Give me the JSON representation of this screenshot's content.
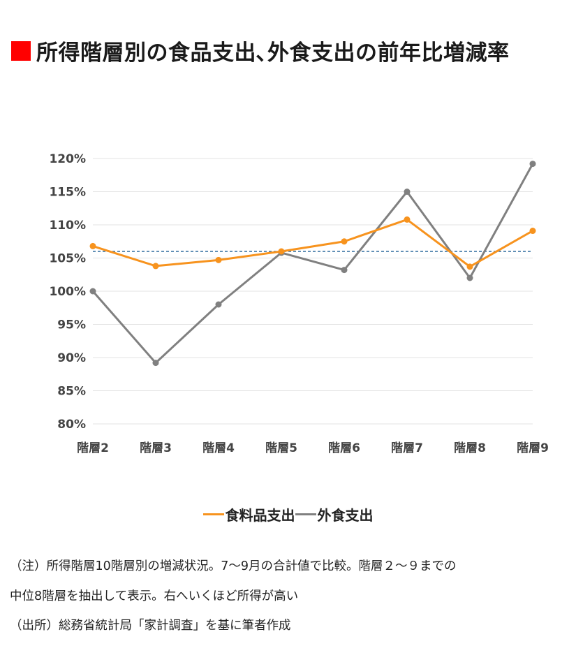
{
  "title": "所得階層別の食品支出､外食支出の前年比増減率",
  "colors": {
    "title_marker": "#ff0000",
    "food": "#f7931e",
    "dining": "#808080",
    "reference": "#2e6b9e",
    "grid": "#e3e3e3"
  },
  "chart_data": {
    "type": "line",
    "categories": [
      "階層2",
      "階層3",
      "階層4",
      "階層5",
      "階層6",
      "階層7",
      "階層8",
      "階層9"
    ],
    "series": [
      {
        "name": "食料品支出",
        "values": [
          106.8,
          103.8,
          104.7,
          106.0,
          107.5,
          110.8,
          103.7,
          109.1
        ]
      },
      {
        "name": "外食支出",
        "values": [
          100.0,
          89.2,
          98.0,
          105.8,
          103.2,
          115.0,
          102.0,
          119.2
        ]
      }
    ],
    "reference_line": 106.0,
    "y_ticks": [
      "80%",
      "85%",
      "90%",
      "95%",
      "100%",
      "105%",
      "110%",
      "115%",
      "120%"
    ],
    "ylim": [
      80,
      120
    ],
    "grid": true,
    "legend_placement": "bottom"
  },
  "notes": {
    "line1": "（注）所得階層10階層別の増減状況。7〜9月の合計値で比較。階層２〜９までの",
    "line2": "中位8階層を抽出して表示。右へいくほど所得が高い",
    "line3": "（出所）総務省統計局「家計調査」を基に筆者作成"
  }
}
